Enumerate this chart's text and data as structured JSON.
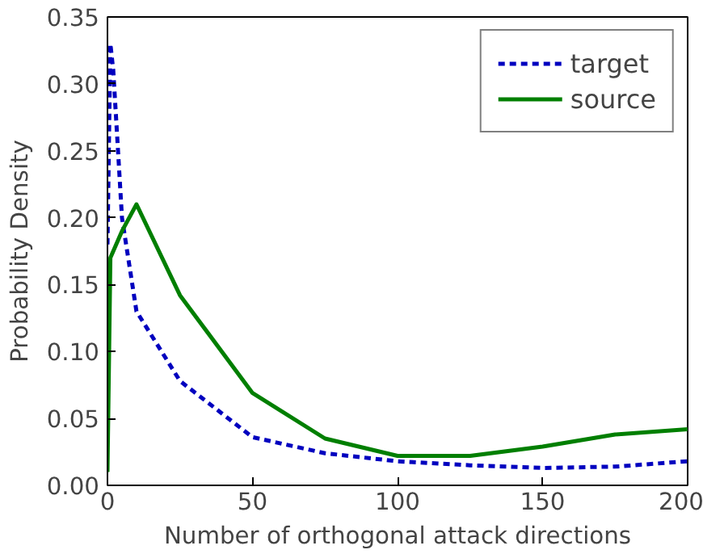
{
  "chart_data": {
    "type": "line",
    "xlabel": "Number of orthogonal attack directions",
    "ylabel": "Probability Density",
    "xlim": [
      0,
      200
    ],
    "ylim": [
      0,
      0.35
    ],
    "xticks": [
      0,
      50,
      100,
      150,
      200
    ],
    "yticks": [
      {
        "value": 0,
        "label": "0.00"
      },
      {
        "value": 0.05,
        "label": "0.05"
      },
      {
        "value": 0.1,
        "label": "0.10"
      },
      {
        "value": 0.15,
        "label": "0.15"
      },
      {
        "value": 0.2,
        "label": "0.20"
      },
      {
        "value": 0.25,
        "label": "0.25"
      },
      {
        "value": 0.3,
        "label": "0.30"
      },
      {
        "value": 0.35,
        "label": "0.35"
      }
    ],
    "legend": "top right",
    "grid": false,
    "series": [
      {
        "name": "target",
        "color": "#0000bf",
        "line_style": "dashed",
        "x": [
          0,
          1,
          2,
          5,
          10,
          25,
          50,
          75,
          100,
          125,
          150,
          175,
          200
        ],
        "values": [
          0.18,
          0.33,
          0.31,
          0.2,
          0.13,
          0.078,
          0.036,
          0.024,
          0.018,
          0.015,
          0.013,
          0.014,
          0.018
        ]
      },
      {
        "name": "source",
        "color": "#007f00",
        "line_style": "solid",
        "x": [
          0,
          1,
          5,
          10,
          25,
          50,
          75,
          100,
          125,
          150,
          175,
          200
        ],
        "values": [
          0.01,
          0.17,
          0.19,
          0.21,
          0.142,
          0.069,
          0.035,
          0.022,
          0.022,
          0.029,
          0.038,
          0.042
        ]
      }
    ]
  }
}
